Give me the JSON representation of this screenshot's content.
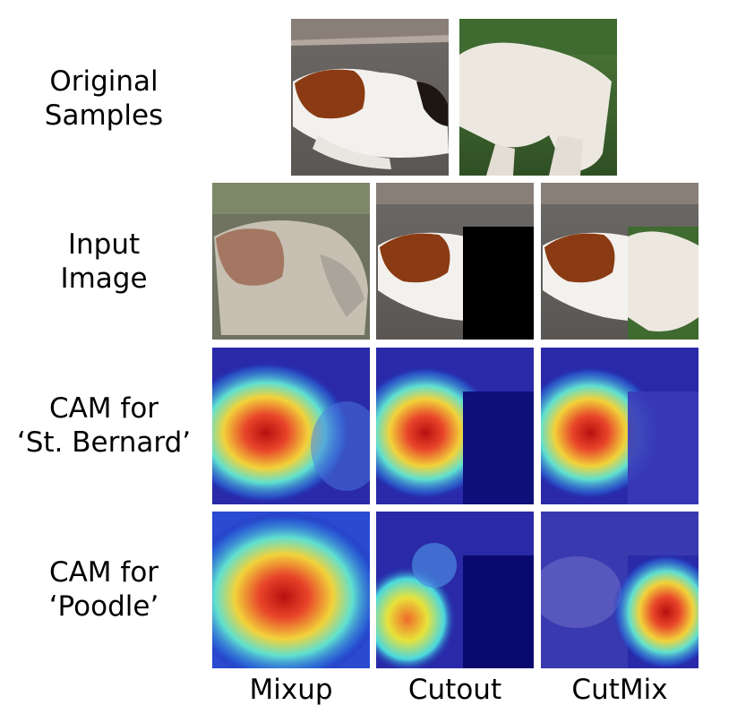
{
  "row_labels": {
    "original": "Original\nSamples",
    "input": "Input\nImage",
    "cam_st_bernard": "CAM for\n‘St. Bernard’",
    "cam_poodle": "CAM for\n‘Poodle’"
  },
  "column_labels": {
    "mixup": "Mixup",
    "cutout": "Cutout",
    "cutmix": "CutMix"
  },
  "colors": {
    "cutout_patch": "#000000",
    "heat_low": "#1a1aa8",
    "heat_high": "#c81414"
  }
}
